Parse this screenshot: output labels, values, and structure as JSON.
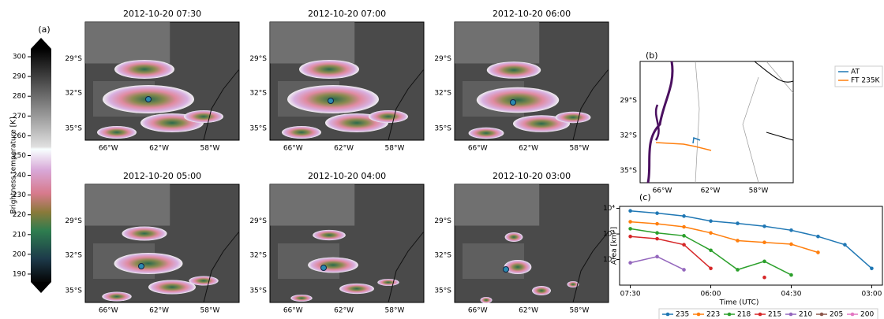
{
  "panel_a": {
    "label": "(a)",
    "colorbar": {
      "label": "Brightness temperature [K]",
      "ylim": [
        186,
        304
      ],
      "ticks": [
        190,
        200,
        210,
        220,
        230,
        240,
        250,
        260,
        270,
        280,
        290,
        300
      ]
    },
    "maps": [
      {
        "title": "2012-10-20 07:30"
      },
      {
        "title": "2012-10-20 07:00"
      },
      {
        "title": "2012-10-20 06:00"
      },
      {
        "title": "2012-10-20 05:00"
      },
      {
        "title": "2012-10-20 04:00"
      },
      {
        "title": "2012-10-20 03:00"
      }
    ]
  },
  "map_axes": {
    "lat": [
      "29°S",
      "32°S",
      "35°S"
    ],
    "lon": [
      "66°W",
      "62°W",
      "58°W"
    ]
  },
  "panel_b": {
    "label": "(b)",
    "legend": [
      {
        "name": "AT",
        "color": "#1f77b4"
      },
      {
        "name": "FT 235K",
        "color": "#ff7f0e"
      }
    ]
  },
  "chart_data": {
    "type": "line",
    "label": "(c)",
    "xlabel": "Time (UTC)",
    "ylabel": "Area [km²]",
    "x": [
      7.5,
      7.0,
      6.5,
      6.0,
      5.5,
      5.0,
      4.5,
      4.0,
      3.5,
      3.0
    ],
    "xlim": [
      7.7,
      2.8
    ],
    "xticks": [
      {
        "value": 7.5,
        "label": "07:30"
      },
      {
        "value": 6.0,
        "label": "06:00"
      },
      {
        "value": 4.5,
        "label": "04:30"
      },
      {
        "value": 3.0,
        "label": "03:00"
      }
    ],
    "ylim": [
      10,
      12000
    ],
    "log_scale": true,
    "yticks": [
      {
        "value": 100,
        "label": "10²"
      },
      {
        "value": 1000,
        "label": "10³"
      },
      {
        "value": 10000,
        "label": "10⁴"
      }
    ],
    "series": [
      {
        "name": "235",
        "color": "#1f77b4",
        "values": [
          8000,
          6500,
          5000,
          3200,
          2600,
          2000,
          1400,
          800,
          380,
          45
        ]
      },
      {
        "name": "223",
        "color": "#ff7f0e",
        "values": [
          3000,
          2500,
          1900,
          1100,
          550,
          470,
          400,
          190,
          null,
          null
        ]
      },
      {
        "name": "218",
        "color": "#2ca02c",
        "values": [
          1600,
          1100,
          850,
          230,
          40,
          85,
          25,
          null,
          null,
          null
        ]
      },
      {
        "name": "215",
        "color": "#d62728",
        "values": [
          800,
          650,
          380,
          45,
          null,
          20,
          null,
          null,
          null,
          null
        ]
      },
      {
        "name": "210",
        "color": "#9467bd",
        "values": [
          75,
          130,
          40,
          null,
          null,
          null,
          null,
          null,
          null,
          null
        ]
      },
      {
        "name": "205",
        "color": "#8c564b",
        "values": [
          null,
          null,
          null,
          null,
          null,
          null,
          null,
          null,
          null,
          null
        ]
      },
      {
        "name": "200",
        "color": "#e377c2",
        "values": [
          null,
          null,
          null,
          null,
          null,
          null,
          null,
          null,
          null,
          null
        ]
      }
    ]
  }
}
